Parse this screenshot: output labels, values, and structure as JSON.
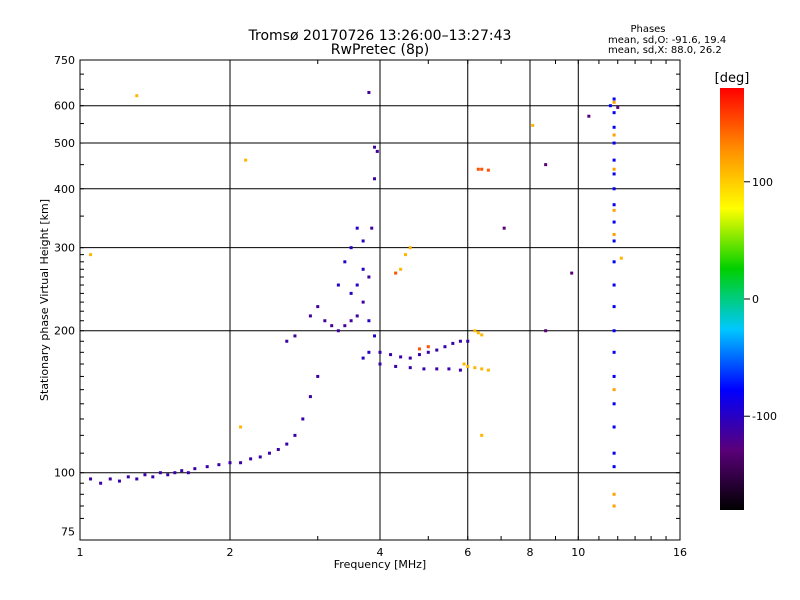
{
  "header": {
    "title": "Tromsø 20170726 13:26:00–13:27:43",
    "subtitle": "RwPretec (8p)"
  },
  "phase_box": {
    "title": "Phases",
    "line_o": "mean, sd,O: -91.6, 19.4",
    "line_x": "mean, sd,X:  88.0, 26.2"
  },
  "chart_data": {
    "type": "scatter",
    "xlabel": "Frequency [MHz]",
    "ylabel": "Stationary phase Virtual Height [km]",
    "xscale": "log",
    "yscale": "log",
    "xlim": [
      1,
      16
    ],
    "ylim": [
      72,
      750
    ],
    "xticks": [
      1,
      2,
      4,
      6,
      8,
      10,
      16
    ],
    "yticks": [
      75,
      100,
      200,
      300,
      400,
      500,
      600,
      750
    ],
    "grid": true,
    "colorbar": {
      "label": "[deg]",
      "range": [
        -180,
        180
      ],
      "ticks": [
        100,
        0,
        -100
      ],
      "colors": [
        "#000000",
        "#5a007a",
        "#0000ff",
        "#00c8ff",
        "#00d000",
        "#ffff00",
        "#ff8c00",
        "#ff0000"
      ]
    },
    "series": [
      {
        "color_deg": -110,
        "points": [
          [
            1.05,
            97
          ],
          [
            1.1,
            95
          ],
          [
            1.15,
            97
          ],
          [
            1.2,
            96
          ],
          [
            1.25,
            98
          ],
          [
            1.3,
            97
          ],
          [
            1.35,
            99
          ],
          [
            1.4,
            98
          ],
          [
            1.45,
            100
          ],
          [
            1.5,
            99
          ],
          [
            1.55,
            100
          ],
          [
            1.6,
            101
          ],
          [
            1.65,
            100
          ],
          [
            1.7,
            102
          ],
          [
            1.8,
            103
          ],
          [
            1.9,
            104
          ],
          [
            2.0,
            105
          ],
          [
            2.1,
            105
          ],
          [
            2.2,
            107
          ],
          [
            2.3,
            108
          ],
          [
            2.4,
            110
          ],
          [
            2.5,
            112
          ],
          [
            2.6,
            115
          ],
          [
            2.7,
            120
          ],
          [
            2.8,
            130
          ],
          [
            2.9,
            145
          ],
          [
            3.0,
            160
          ]
        ]
      },
      {
        "color_deg": -115,
        "points": [
          [
            2.6,
            190
          ],
          [
            2.7,
            195
          ],
          [
            2.9,
            215
          ],
          [
            3.0,
            225
          ],
          [
            3.1,
            210
          ],
          [
            3.2,
            205
          ],
          [
            3.3,
            200
          ],
          [
            3.4,
            205
          ],
          [
            3.5,
            210
          ],
          [
            3.6,
            215
          ],
          [
            3.7,
            230
          ],
          [
            3.8,
            260
          ],
          [
            3.85,
            330
          ],
          [
            3.9,
            420
          ],
          [
            3.95,
            480
          ],
          [
            3.9,
            490
          ],
          [
            3.8,
            640
          ]
        ]
      },
      {
        "color_deg": -100,
        "points": [
          [
            3.7,
            310
          ],
          [
            3.6,
            330
          ],
          [
            3.5,
            300
          ],
          [
            3.4,
            280
          ],
          [
            3.3,
            250
          ],
          [
            3.5,
            240
          ],
          [
            3.6,
            250
          ],
          [
            3.7,
            270
          ],
          [
            3.8,
            210
          ],
          [
            3.9,
            195
          ],
          [
            3.8,
            180
          ],
          [
            3.7,
            175
          ]
        ]
      },
      {
        "color_deg": -110,
        "points": [
          [
            4.0,
            180
          ],
          [
            4.2,
            178
          ],
          [
            4.4,
            176
          ],
          [
            4.6,
            175
          ],
          [
            4.8,
            178
          ],
          [
            5.0,
            180
          ],
          [
            5.2,
            182
          ],
          [
            5.4,
            185
          ],
          [
            5.6,
            188
          ],
          [
            5.8,
            190
          ],
          [
            6.0,
            190
          ],
          [
            4.0,
            170
          ],
          [
            4.3,
            168
          ],
          [
            4.6,
            167
          ],
          [
            4.9,
            166
          ],
          [
            5.2,
            166
          ],
          [
            5.5,
            166
          ],
          [
            5.8,
            165
          ]
        ]
      },
      {
        "color_deg": 110,
        "points": [
          [
            5.9,
            170
          ],
          [
            6.0,
            168
          ],
          [
            6.2,
            167
          ],
          [
            6.4,
            166
          ],
          [
            6.6,
            165
          ],
          [
            6.2,
            200
          ],
          [
            6.3,
            198
          ],
          [
            6.4,
            196
          ],
          [
            4.5,
            290
          ],
          [
            4.6,
            300
          ],
          [
            4.4,
            270
          ]
        ]
      },
      {
        "color_deg": 150,
        "points": [
          [
            6.3,
            440
          ],
          [
            6.4,
            440
          ],
          [
            6.6,
            438
          ],
          [
            4.3,
            265
          ],
          [
            5.0,
            185
          ],
          [
            4.8,
            183
          ]
        ]
      },
      {
        "color_deg": -80,
        "points": [
          [
            11.8,
            620
          ],
          [
            11.8,
            580
          ],
          [
            11.8,
            540
          ],
          [
            11.8,
            500
          ],
          [
            11.8,
            460
          ],
          [
            11.8,
            430
          ],
          [
            11.8,
            400
          ],
          [
            11.8,
            370
          ],
          [
            11.8,
            340
          ],
          [
            11.8,
            310
          ],
          [
            11.8,
            280
          ],
          [
            11.8,
            250
          ],
          [
            11.8,
            225
          ],
          [
            11.8,
            200
          ],
          [
            11.8,
            180
          ],
          [
            11.8,
            160
          ],
          [
            11.8,
            140
          ],
          [
            11.8,
            125
          ],
          [
            11.8,
            110
          ],
          [
            11.8,
            103
          ],
          [
            11.6,
            600
          ]
        ]
      },
      {
        "color_deg": 120,
        "points": [
          [
            11.8,
            610
          ],
          [
            11.8,
            520
          ],
          [
            11.8,
            440
          ],
          [
            11.8,
            360
          ],
          [
            11.8,
            320
          ],
          [
            11.8,
            150
          ],
          [
            11.8,
            90
          ],
          [
            11.8,
            85
          ]
        ]
      },
      {
        "color_deg": -130,
        "points": [
          [
            10.5,
            570
          ],
          [
            8.6,
            450
          ],
          [
            7.1,
            330
          ],
          [
            9.7,
            265
          ],
          [
            8.6,
            200
          ],
          [
            12.0,
            595
          ]
        ]
      },
      {
        "color_deg": 110,
        "points": [
          [
            1.3,
            630
          ],
          [
            2.15,
            460
          ],
          [
            1.05,
            290
          ],
          [
            2.1,
            125
          ],
          [
            6.4,
            120
          ],
          [
            8.1,
            545
          ],
          [
            12.2,
            285
          ]
        ]
      }
    ]
  }
}
